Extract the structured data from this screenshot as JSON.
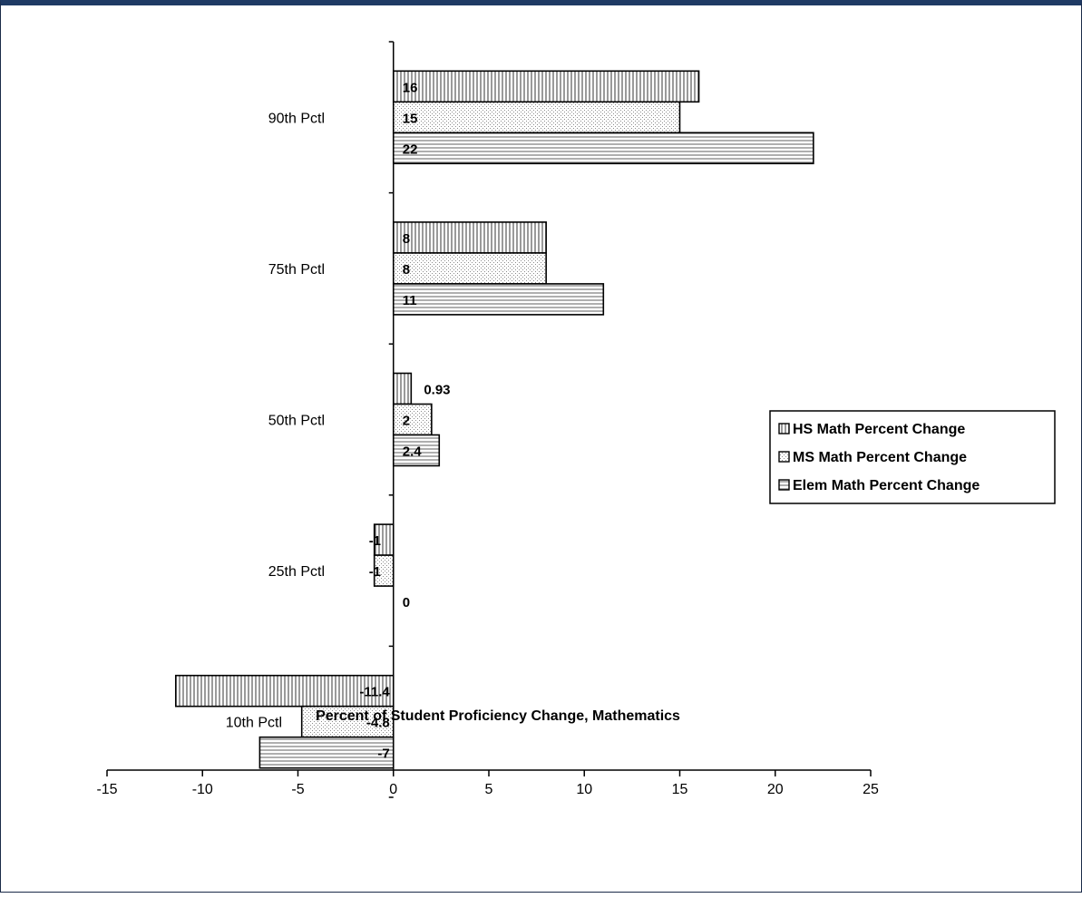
{
  "chart_data": {
    "type": "bar",
    "orientation": "horizontal",
    "categories": [
      "90th Pctl",
      "75th Pctl",
      "50th Pctl",
      "25th Pctl",
      "10th Pctl"
    ],
    "series": [
      {
        "name": "HS Math Percent Change",
        "pattern": "vertical-lines",
        "values": [
          16,
          8,
          0.93,
          -1,
          -11.4
        ],
        "labels": [
          "16",
          "8",
          "0.93",
          "-1",
          "-11.4"
        ]
      },
      {
        "name": "MS Math Percent Change",
        "pattern": "dots",
        "values": [
          15,
          8,
          2,
          -1,
          -4.8
        ],
        "labels": [
          "15",
          "8",
          "2",
          "-1",
          "-4.8"
        ]
      },
      {
        "name": "Elem Math Percent Change",
        "pattern": "horizontal-lines",
        "values": [
          22,
          11,
          2.4,
          0,
          -7
        ],
        "labels": [
          "22",
          "11",
          "2.4",
          "0",
          "-7"
        ]
      }
    ],
    "xlabel": "Percent of Student Proficiency Change, Mathematics",
    "ylabel": "",
    "xlim": [
      -15,
      25
    ],
    "xticks": [
      -15,
      -10,
      -5,
      0,
      5,
      10,
      15,
      20,
      25
    ],
    "xtick_labels": [
      "-15",
      "-10",
      "-5",
      "0",
      "5",
      "10",
      "15",
      "20",
      "25"
    ],
    "legend": "right",
    "grid": false,
    "colors": {
      "bar_fill": "#ffffff",
      "pattern": "#7a7a7a",
      "outline": "#000000",
      "frame_top": "#1f3a64"
    }
  }
}
